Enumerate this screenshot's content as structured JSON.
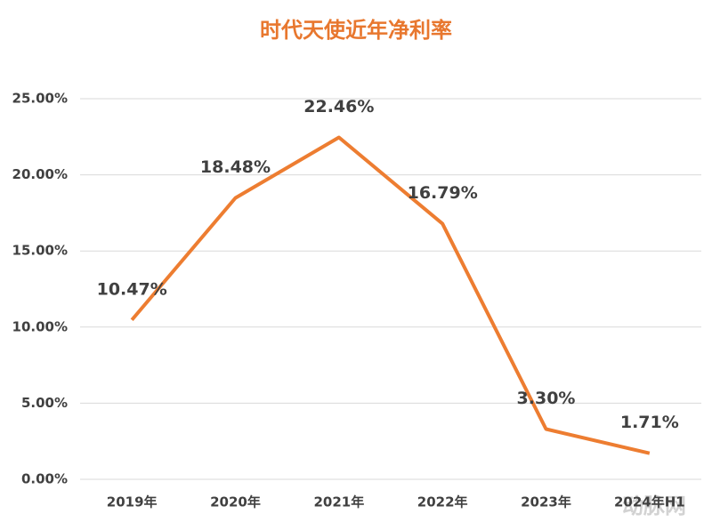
{
  "chart_data": {
    "type": "line",
    "title": "时代天使近年净利率",
    "categories": [
      "2019年",
      "2020年",
      "2021年",
      "2022年",
      "2023年",
      "2024年H1"
    ],
    "values": [
      10.47,
      18.48,
      22.46,
      16.79,
      3.3,
      1.71
    ],
    "value_labels": [
      "10.47%",
      "18.48%",
      "22.46%",
      "16.79%",
      "3.30%",
      "1.71%"
    ],
    "color": "#ED7D31",
    "ylim": [
      0,
      25
    ],
    "yticks": [
      {
        "value": 0,
        "label": "0.00%"
      },
      {
        "value": 5,
        "label": "5.00%"
      },
      {
        "value": 10,
        "label": "10.00%"
      },
      {
        "value": 15,
        "label": "15.00%"
      },
      {
        "value": 20,
        "label": "20.00%"
      },
      {
        "value": 25,
        "label": "25.00%"
      }
    ],
    "grid": true,
    "watermark": "动脉网"
  }
}
